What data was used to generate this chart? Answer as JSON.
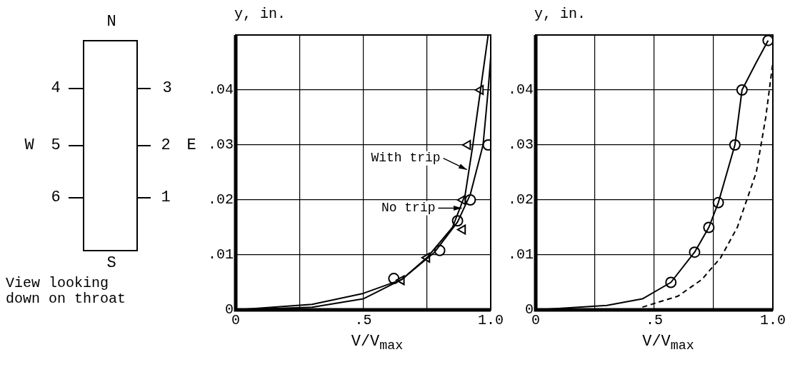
{
  "chart_data": [
    {
      "type": "other",
      "annotations": [
        "N",
        "4",
        "3",
        "W",
        "5",
        "2",
        "E",
        "6",
        "1",
        "S",
        "View looking down on throat"
      ]
    },
    {
      "type": "line",
      "xlabel": "V/V$_{max}$",
      "ylabel": "y, in.",
      "xlim": [
        0,
        1.0
      ],
      "ylim": [
        0,
        0.05
      ],
      "xticks": [
        0,
        {
          "value": 0.25,
          "label": null
        },
        {
          "value": 0.5,
          "label": ".5"
        },
        {
          "value": 0.75,
          "label": null
        },
        {
          "value": 1.0,
          "label": "1.0"
        }
      ],
      "yticks": [
        0,
        {
          "value": 0.01,
          "label": ".01"
        },
        {
          "value": 0.02,
          "label": ".02"
        },
        {
          "value": 0.03,
          "label": ".03"
        },
        {
          "value": 0.04,
          "label": ".04"
        },
        {
          "value": 0.05,
          "label": null
        }
      ],
      "grid": true,
      "legend": "center",
      "series": [
        {
          "name": "With trip",
          "color": "#000000",
          "type": "line",
          "marker": "none",
          "x": [
            0,
            0.3,
            0.5,
            0.65,
            0.75,
            0.85,
            0.9,
            0.93,
            0.96,
            0.99
          ],
          "values": [
            0,
            0.001,
            0.003,
            0.0055,
            0.0095,
            0.015,
            0.021,
            0.03,
            0.04,
            0.05
          ]
        },
        {
          "name": "No trip",
          "color": "#000000",
          "type": "line",
          "marker": "none",
          "x": [
            0,
            0.3,
            0.5,
            0.65,
            0.78,
            0.87,
            0.92,
            0.97,
            0.99,
            1.0
          ],
          "values": [
            0,
            0.0005,
            0.002,
            0.0055,
            0.0105,
            0.016,
            0.021,
            0.03,
            0.04,
            0.046
          ]
        },
        {
          "color": "#000000",
          "type": "scatter",
          "marker": "triangle",
          "x": [
            0.65,
            0.75,
            0.89,
            0.89,
            0.91,
            0.96
          ],
          "values": [
            0.0054,
            0.0095,
            0.0146,
            0.02,
            0.03,
            0.04
          ]
        },
        {
          "color": "#000000",
          "type": "scatter",
          "marker": "circle",
          "x": [
            0.62,
            0.8,
            0.87,
            0.92,
            0.99
          ],
          "values": [
            0.0057,
            0.0108,
            0.0162,
            0.02,
            0.03
          ]
        }
      ]
    },
    {
      "type": "line",
      "xlabel": "V/V$_{max}$",
      "ylabel": "y, in.",
      "xlim": [
        0,
        1.0
      ],
      "ylim": [
        0,
        0.05
      ],
      "xticks": [
        0,
        {
          "value": 0.25,
          "label": null
        },
        {
          "value": 0.5,
          "label": ".5"
        },
        {
          "value": 0.75,
          "label": null
        },
        {
          "value": 1.0,
          "label": "1.0"
        }
      ],
      "yticks": [
        0,
        {
          "value": 0.01,
          "label": ".01"
        },
        {
          "value": 0.02,
          "label": ".02"
        },
        {
          "value": 0.03,
          "label": ".03"
        },
        {
          "value": 0.04,
          "label": ".04"
        },
        {
          "value": 0.05,
          "label": null
        }
      ],
      "grid": true,
      "series": [
        {
          "color": "#000000",
          "type": "line",
          "marker": "none",
          "line_style": "solid",
          "x": [
            0,
            0.3,
            0.45,
            0.57,
            0.67,
            0.73,
            0.77,
            0.84,
            0.87,
            0.93,
            0.98
          ],
          "values": [
            0,
            0.0008,
            0.002,
            0.005,
            0.0105,
            0.015,
            0.0195,
            0.03,
            0.04,
            0.045,
            0.049
          ]
        },
        {
          "color": "#000000",
          "type": "line",
          "marker": "none",
          "line_style": "dashed",
          "x": [
            0.45,
            0.6,
            0.7,
            0.78,
            0.85,
            0.93,
            0.97,
            1.0
          ],
          "values": [
            0.0005,
            0.0025,
            0.0055,
            0.0095,
            0.015,
            0.025,
            0.035,
            0.045
          ]
        },
        {
          "color": "#000000",
          "type": "scatter",
          "marker": "circle",
          "x": [
            0.57,
            0.67,
            0.73,
            0.77,
            0.84,
            0.87,
            0.98
          ],
          "values": [
            0.005,
            0.0105,
            0.015,
            0.0195,
            0.03,
            0.04,
            0.049
          ]
        }
      ]
    }
  ]
}
